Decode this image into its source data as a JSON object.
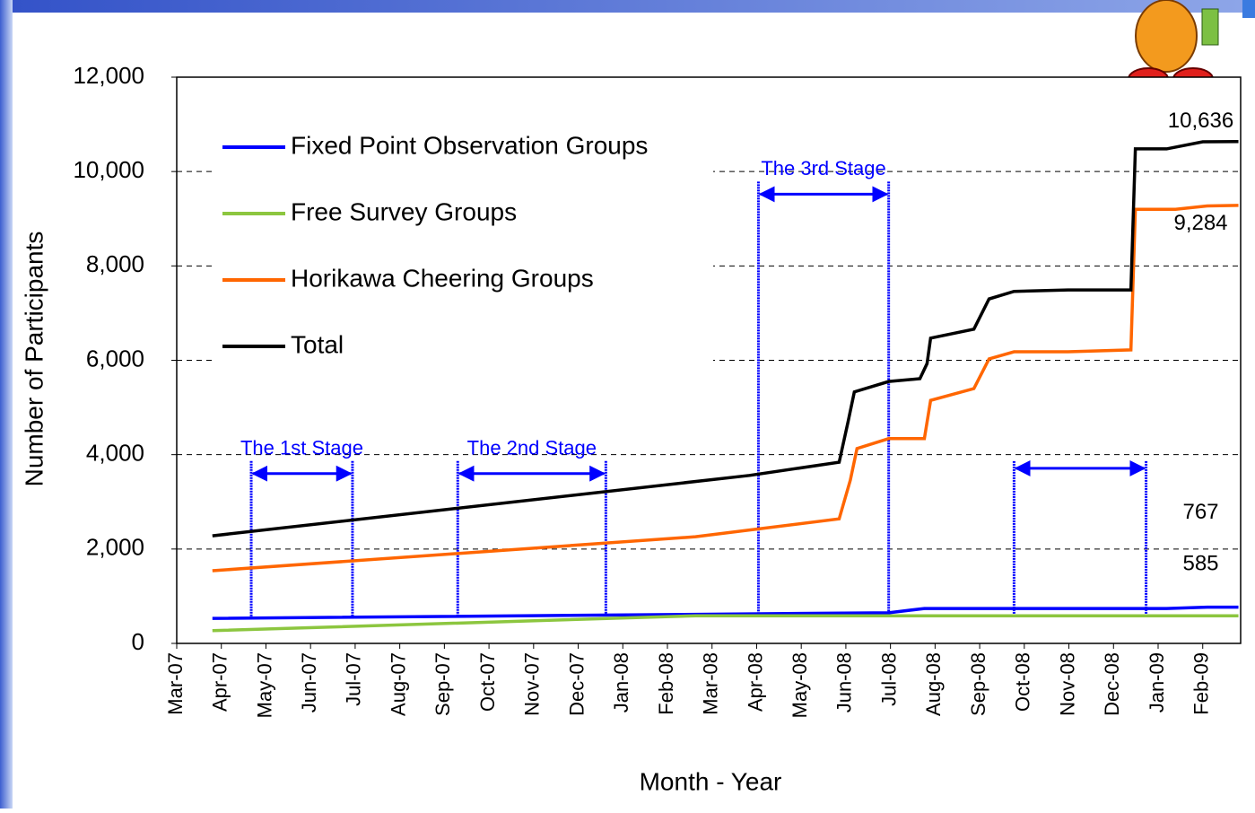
{
  "chart_data": {
    "type": "line",
    "x_label": "Month - Year",
    "y_label": "Number of Participants",
    "xlim": [
      0,
      23.85
    ],
    "xticks": [
      {
        "value": 0,
        "label": "Mar-07"
      },
      {
        "value": 1,
        "label": "Apr-07"
      },
      {
        "value": 2,
        "label": "May-07"
      },
      {
        "value": 3,
        "label": "Jun-07"
      },
      {
        "value": 4,
        "label": "Jul-07"
      },
      {
        "value": 5,
        "label": "Aug-07"
      },
      {
        "value": 6,
        "label": "Sep-07"
      },
      {
        "value": 7,
        "label": "Oct-07"
      },
      {
        "value": 8,
        "label": "Nov-07"
      },
      {
        "value": 9,
        "label": "Dec-07"
      },
      {
        "value": 10,
        "label": "Jan-08"
      },
      {
        "value": 11,
        "label": "Feb-08"
      },
      {
        "value": 12,
        "label": "Mar-08"
      },
      {
        "value": 13,
        "label": "Apr-08"
      },
      {
        "value": 14,
        "label": "May-08"
      },
      {
        "value": 15,
        "label": "Jun-08"
      },
      {
        "value": 16,
        "label": "Jul-08"
      },
      {
        "value": 17,
        "label": "Aug-08"
      },
      {
        "value": 18,
        "label": "Sep-08"
      },
      {
        "value": 19,
        "label": "Oct-08"
      },
      {
        "value": 20,
        "label": "Nov-08"
      },
      {
        "value": 21,
        "label": "Dec-08"
      },
      {
        "value": 22,
        "label": "Jan-09"
      },
      {
        "value": 23,
        "label": "Feb-09"
      }
    ],
    "ylim": [
      0,
      12000
    ],
    "yticks": [
      0,
      {
        "value": 2000,
        "label": "2,000"
      },
      {
        "value": 4000,
        "label": "4,000"
      },
      {
        "value": 6000,
        "label": "6,000"
      },
      {
        "value": 8000,
        "label": "8,000"
      },
      {
        "value": 10000,
        "label": "10,000"
      },
      {
        "value": 12000,
        "label": "12,000"
      }
    ],
    "grid": true,
    "legend": "upper left",
    "series": [
      {
        "name": "Fixed Point Observation Groups",
        "color": "#0000ff",
        "x": [
          0.8,
          15.96,
          16.76,
          22.19,
          23.1,
          23.8
        ],
        "values": [
          530,
          650,
          740,
          740,
          767,
          767
        ],
        "value_labels": [
          null,
          null,
          null,
          null,
          null,
          "767"
        ]
      },
      {
        "name": "Free Survey Groups",
        "color": "#8cc63f",
        "x": [
          0.8,
          11.63,
          23.8
        ],
        "values": [
          270,
          585,
          585
        ],
        "value_labels": [
          null,
          null,
          "585"
        ]
      },
      {
        "name": "Horikawa Cheering Groups",
        "color": "#ff6600",
        "x": [
          0.8,
          11.63,
          14.85,
          15.1,
          15.25,
          15.96,
          16.76,
          16.9,
          17.87,
          18.21,
          18.77,
          19.98,
          21.39,
          21.49,
          22.39,
          23.1,
          23.8
        ],
        "values": [
          1540,
          2260,
          2640,
          3460,
          4130,
          4340,
          4340,
          5150,
          5400,
          6030,
          6180,
          6180,
          6220,
          9200,
          9200,
          9270,
          9284
        ],
        "value_labels": [
          null,
          null,
          null,
          null,
          null,
          null,
          null,
          null,
          null,
          null,
          null,
          null,
          null,
          null,
          null,
          null,
          "9,284"
        ]
      },
      {
        "name": "Total",
        "color": "#000000",
        "x": [
          0.8,
          12.84,
          14.85,
          15.05,
          15.19,
          15.96,
          16.66,
          16.82,
          16.9,
          17.87,
          18.21,
          18.77,
          19.98,
          21.39,
          21.49,
          22.19,
          23.0,
          23.8
        ],
        "values": [
          2280,
          3560,
          3840,
          4700,
          5330,
          5550,
          5610,
          5930,
          6470,
          6660,
          7300,
          7460,
          7490,
          7490,
          10480,
          10480,
          10630,
          10636
        ],
        "value_labels": [
          null,
          null,
          null,
          null,
          null,
          null,
          null,
          null,
          null,
          null,
          null,
          null,
          null,
          null,
          null,
          null,
          null,
          "10,636"
        ]
      }
    ],
    "annotations": [
      {
        "text": "The 1st Stage",
        "x": [
          1.67,
          3.94
        ],
        "y": 3600
      },
      {
        "text": "The 2nd Stage",
        "x": [
          6.3,
          9.62
        ],
        "y": 3600
      },
      {
        "text": "The 3rd Stage",
        "x": [
          13.04,
          15.96
        ],
        "y": 9520
      },
      {
        "x": [
          18.77,
          21.73
        ],
        "y": 3710
      }
    ]
  }
}
